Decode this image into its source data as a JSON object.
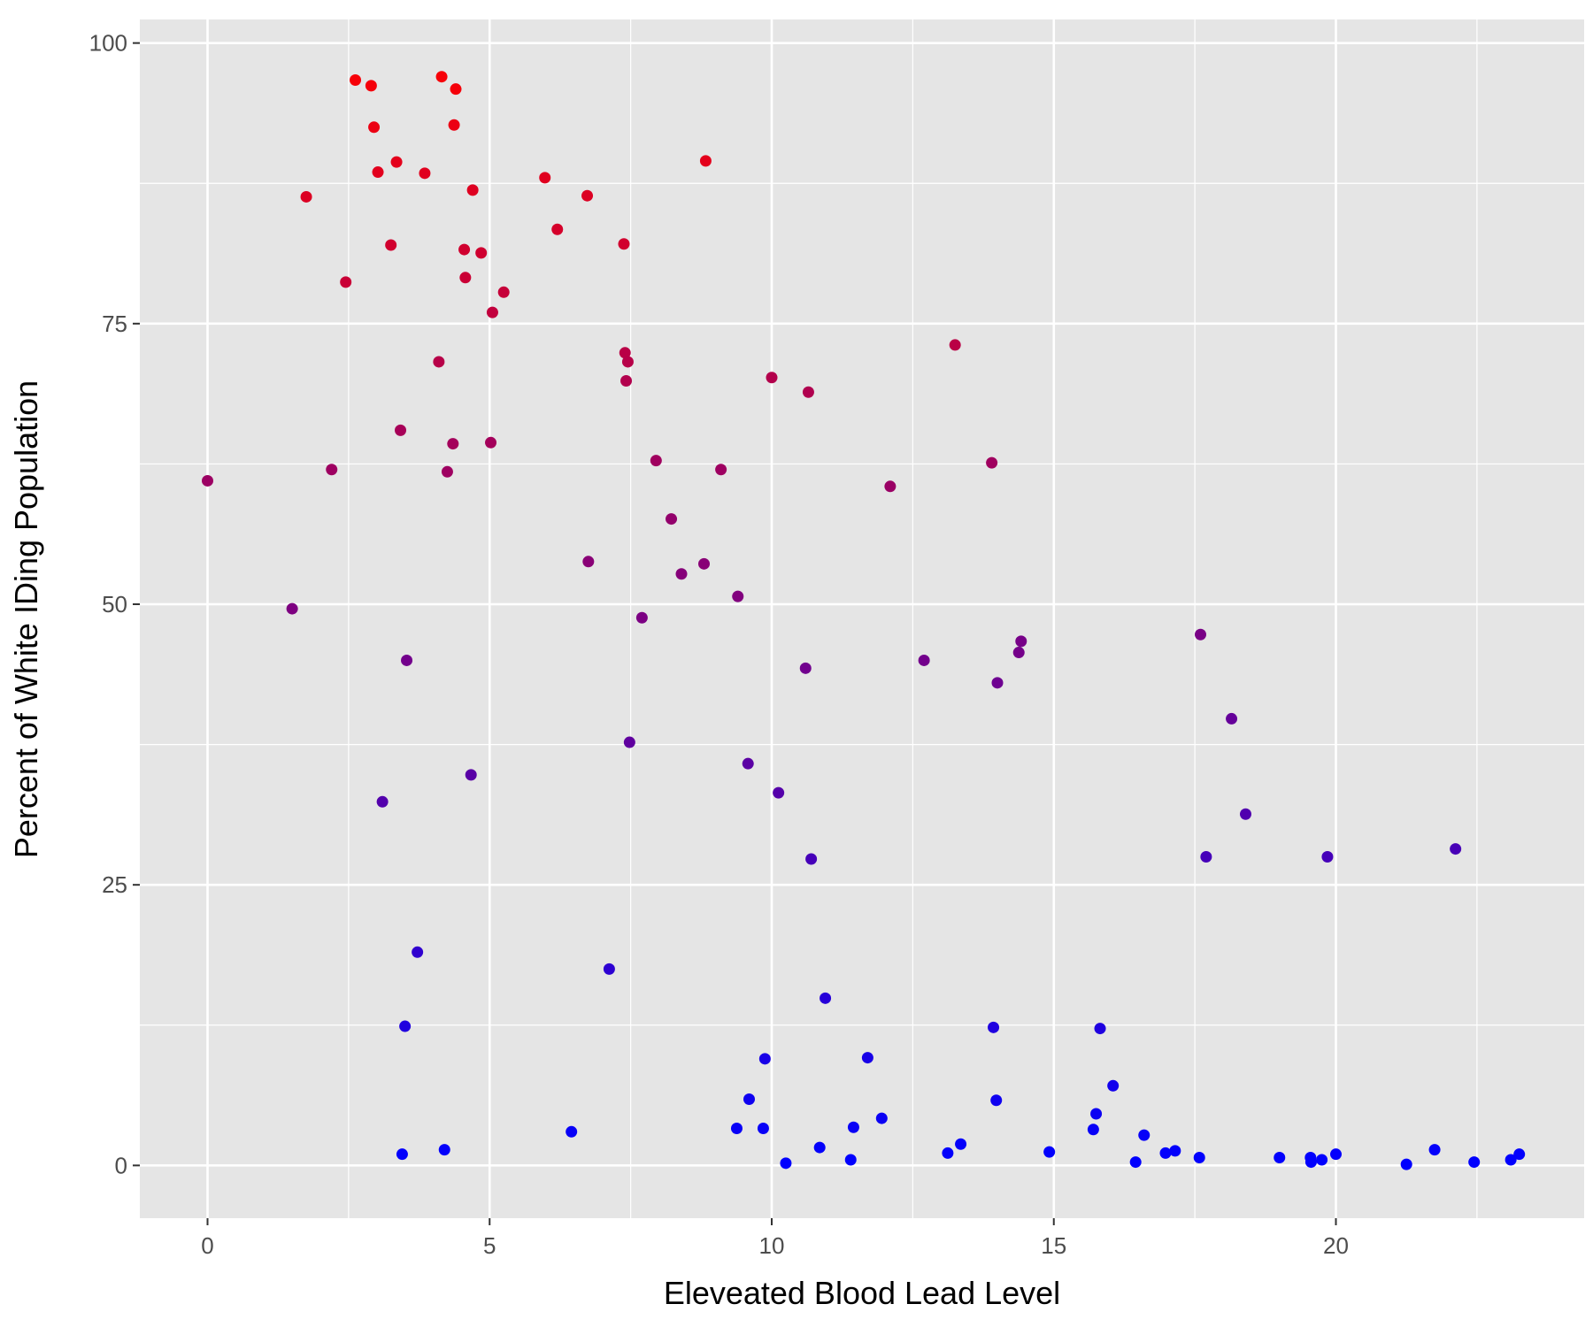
{
  "chart_data": {
    "type": "scatter",
    "title": "",
    "xlabel": "Eleveated Blood Lead Level",
    "ylabel": "Percent of White IDing Population",
    "xlim": [
      -1.2,
      24.4
    ],
    "ylim": [
      -4.7,
      102.1
    ],
    "xticks": [
      0,
      5,
      10,
      15,
      20
    ],
    "xtick_labels": [
      "0",
      "5",
      "10",
      "15",
      "20"
    ],
    "yticks": [
      0,
      25,
      50,
      75,
      100
    ],
    "ytick_labels": [
      "0",
      "25",
      "50",
      "75",
      "100"
    ],
    "grid": true,
    "legend": "none",
    "color_encoding": "color interpolates from blue at 0% to red at 100% of y",
    "low_color": "#0000ff",
    "high_color": "#ff0000",
    "panel_background": "#e5e5e5",
    "gridline_color": "#ffffff",
    "points": [
      [
        0.0,
        61.0
      ],
      [
        1.5,
        49.6
      ],
      [
        1.75,
        86.3
      ],
      [
        2.2,
        62.0
      ],
      [
        2.45,
        78.7
      ],
      [
        2.62,
        96.7
      ],
      [
        2.9,
        96.2
      ],
      [
        2.95,
        92.5
      ],
      [
        3.02,
        88.5
      ],
      [
        3.1,
        32.4
      ],
      [
        3.25,
        82.0
      ],
      [
        3.35,
        89.4
      ],
      [
        3.42,
        65.5
      ],
      [
        3.45,
        1.0
      ],
      [
        3.5,
        12.4
      ],
      [
        3.53,
        45.0
      ],
      [
        3.72,
        19.0
      ],
      [
        3.85,
        88.4
      ],
      [
        4.1,
        71.6
      ],
      [
        4.15,
        97.0
      ],
      [
        4.2,
        1.4
      ],
      [
        4.25,
        61.8
      ],
      [
        4.35,
        64.3
      ],
      [
        4.37,
        92.7
      ],
      [
        4.4,
        95.9
      ],
      [
        4.55,
        81.6
      ],
      [
        4.57,
        79.1
      ],
      [
        4.67,
        34.8
      ],
      [
        4.7,
        86.9
      ],
      [
        4.85,
        81.3
      ],
      [
        5.02,
        64.4
      ],
      [
        5.05,
        76.0
      ],
      [
        5.25,
        77.8
      ],
      [
        5.98,
        88.0
      ],
      [
        6.2,
        83.4
      ],
      [
        6.45,
        3.0
      ],
      [
        6.75,
        53.8
      ],
      [
        6.73,
        86.4
      ],
      [
        7.12,
        17.5
      ],
      [
        7.38,
        82.1
      ],
      [
        7.4,
        72.4
      ],
      [
        7.42,
        69.9
      ],
      [
        7.45,
        71.6
      ],
      [
        7.48,
        37.7
      ],
      [
        7.7,
        48.8
      ],
      [
        7.95,
        62.8
      ],
      [
        8.22,
        57.6
      ],
      [
        8.4,
        52.7
      ],
      [
        8.8,
        53.6
      ],
      [
        8.83,
        89.5
      ],
      [
        9.1,
        62.0
      ],
      [
        9.38,
        3.3
      ],
      [
        9.4,
        50.7
      ],
      [
        9.58,
        35.8
      ],
      [
        9.6,
        5.9
      ],
      [
        9.85,
        3.3
      ],
      [
        9.88,
        9.5
      ],
      [
        10.0,
        70.2
      ],
      [
        10.12,
        33.2
      ],
      [
        10.25,
        0.2
      ],
      [
        10.6,
        44.3
      ],
      [
        10.65,
        68.9
      ],
      [
        10.7,
        27.3
      ],
      [
        10.85,
        1.6
      ],
      [
        10.95,
        14.9
      ],
      [
        11.4,
        0.5
      ],
      [
        11.45,
        3.4
      ],
      [
        11.7,
        9.6
      ],
      [
        11.95,
        4.2
      ],
      [
        12.1,
        60.5
      ],
      [
        12.7,
        45.0
      ],
      [
        13.12,
        1.1
      ],
      [
        13.25,
        73.1
      ],
      [
        13.35,
        1.9
      ],
      [
        13.9,
        62.6
      ],
      [
        13.93,
        12.3
      ],
      [
        13.98,
        5.8
      ],
      [
        14.0,
        43.0
      ],
      [
        14.38,
        45.7
      ],
      [
        14.42,
        46.7
      ],
      [
        14.92,
        1.2
      ],
      [
        15.7,
        3.2
      ],
      [
        15.75,
        4.6
      ],
      [
        15.82,
        12.2
      ],
      [
        16.05,
        7.1
      ],
      [
        16.45,
        0.3
      ],
      [
        16.6,
        2.7
      ],
      [
        16.98,
        1.1
      ],
      [
        17.15,
        1.3
      ],
      [
        17.58,
        0.7
      ],
      [
        17.6,
        47.3
      ],
      [
        17.7,
        27.5
      ],
      [
        18.15,
        39.8
      ],
      [
        18.4,
        31.3
      ],
      [
        19.0,
        0.7
      ],
      [
        19.55,
        0.7
      ],
      [
        19.56,
        0.3
      ],
      [
        19.75,
        0.5
      ],
      [
        19.85,
        27.5
      ],
      [
        20.0,
        1.0
      ],
      [
        21.25,
        0.1
      ],
      [
        21.75,
        1.4
      ],
      [
        22.12,
        28.2
      ],
      [
        22.45,
        0.3
      ],
      [
        23.1,
        0.5
      ],
      [
        23.25,
        1.0
      ]
    ]
  }
}
